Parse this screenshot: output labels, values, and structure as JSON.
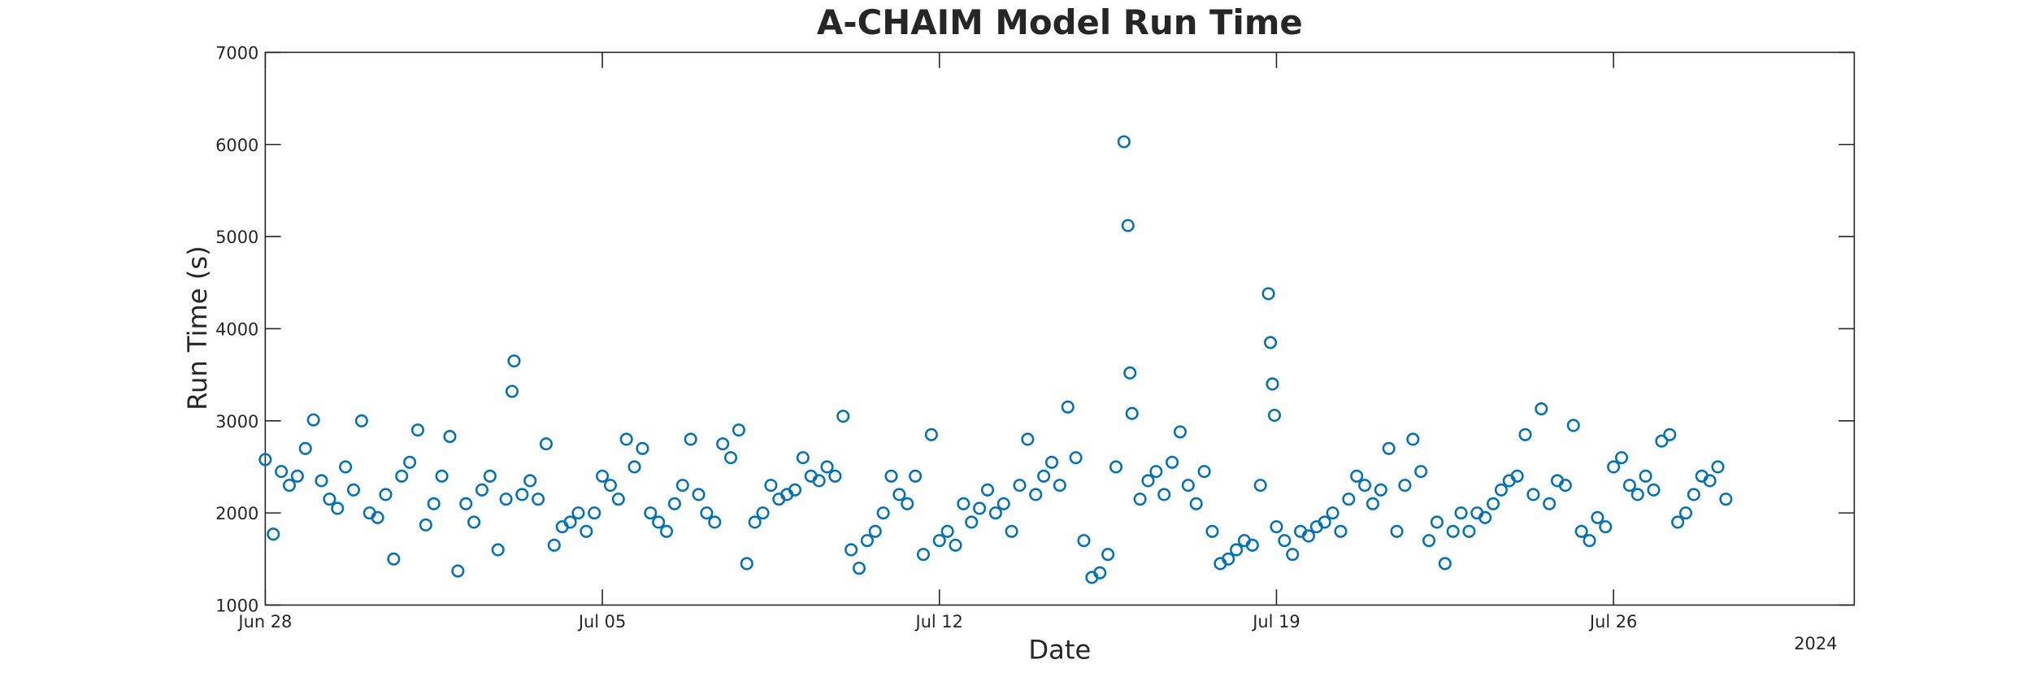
{
  "chart_data": {
    "type": "scatter",
    "title": "A-CHAIM Model Run Time",
    "xlabel": "Date",
    "ylabel": "Run Time (s)",
    "x_secondary_label": "2024",
    "color": "#0072bd",
    "xlim": [
      "2024-06-28T00:00",
      "2024-07-31T00:00"
    ],
    "xticks": [
      {
        "value": "2024-06-28T00:00",
        "label": "Jun 28"
      },
      {
        "value": "2024-07-05T00:00",
        "label": "Jul 05"
      },
      {
        "value": "2024-07-12T00:00",
        "label": "Jul 12"
      },
      {
        "value": "2024-07-19T00:00",
        "label": "Jul 19"
      },
      {
        "value": "2024-07-26T00:00",
        "label": "Jul 26"
      }
    ],
    "ylim": [
      1000,
      7000
    ],
    "yticks": [
      1000,
      2000,
      3000,
      4000,
      5000,
      6000,
      7000
    ],
    "x": [
      "2024-06-28T00:00",
      "2024-06-28T04:00",
      "2024-06-28T08:00",
      "2024-06-28T12:00",
      "2024-06-28T16:00",
      "2024-06-28T20:00",
      "2024-06-29T00:00",
      "2024-06-29T04:00",
      "2024-06-29T08:00",
      "2024-06-29T12:00",
      "2024-06-29T16:00",
      "2024-06-29T20:00",
      "2024-06-30T00:00",
      "2024-06-30T04:00",
      "2024-06-30T08:00",
      "2024-06-30T12:00",
      "2024-06-30T16:00",
      "2024-06-30T20:00",
      "2024-07-01T00:00",
      "2024-07-01T04:00",
      "2024-07-01T08:00",
      "2024-07-01T12:00",
      "2024-07-01T16:00",
      "2024-07-01T20:00",
      "2024-07-02T00:00",
      "2024-07-02T04:00",
      "2024-07-02T08:00",
      "2024-07-02T12:00",
      "2024-07-02T16:00",
      "2024-07-02T20:00",
      "2024-07-03T00:00",
      "2024-07-03T03:00",
      "2024-07-03T04:00",
      "2024-07-03T08:00",
      "2024-07-03T12:00",
      "2024-07-03T16:00",
      "2024-07-03T20:00",
      "2024-07-04T00:00",
      "2024-07-04T04:00",
      "2024-07-04T08:00",
      "2024-07-04T12:00",
      "2024-07-04T16:00",
      "2024-07-04T20:00",
      "2024-07-05T00:00",
      "2024-07-05T04:00",
      "2024-07-05T08:00",
      "2024-07-05T12:00",
      "2024-07-05T16:00",
      "2024-07-05T20:00",
      "2024-07-06T00:00",
      "2024-07-06T04:00",
      "2024-07-06T08:00",
      "2024-07-06T12:00",
      "2024-07-06T16:00",
      "2024-07-06T20:00",
      "2024-07-07T00:00",
      "2024-07-07T04:00",
      "2024-07-07T08:00",
      "2024-07-07T12:00",
      "2024-07-07T16:00",
      "2024-07-07T20:00",
      "2024-07-08T00:00",
      "2024-07-08T04:00",
      "2024-07-08T08:00",
      "2024-07-08T12:00",
      "2024-07-08T16:00",
      "2024-07-08T20:00",
      "2024-07-09T00:00",
      "2024-07-09T04:00",
      "2024-07-09T08:00",
      "2024-07-09T12:00",
      "2024-07-09T16:00",
      "2024-07-09T20:00",
      "2024-07-10T00:00",
      "2024-07-10T04:00",
      "2024-07-10T08:00",
      "2024-07-10T12:00",
      "2024-07-10T16:00",
      "2024-07-10T20:00",
      "2024-07-11T00:00",
      "2024-07-11T04:00",
      "2024-07-11T08:00",
      "2024-07-11T12:00",
      "2024-07-11T16:00",
      "2024-07-11T20:00",
      "2024-07-12T00:00",
      "2024-07-12T04:00",
      "2024-07-12T08:00",
      "2024-07-12T12:00",
      "2024-07-12T16:00",
      "2024-07-12T20:00",
      "2024-07-13T00:00",
      "2024-07-13T04:00",
      "2024-07-13T08:00",
      "2024-07-13T12:00",
      "2024-07-13T16:00",
      "2024-07-13T20:00",
      "2024-07-14T00:00",
      "2024-07-14T04:00",
      "2024-07-14T08:00",
      "2024-07-14T12:00",
      "2024-07-14T16:00",
      "2024-07-14T20:00",
      "2024-07-15T00:00",
      "2024-07-15T04:00",
      "2024-07-15T08:00",
      "2024-07-15T12:00",
      "2024-07-15T16:00",
      "2024-07-15T20:00",
      "2024-07-15T22:00",
      "2024-07-15T23:00",
      "2024-07-16T00:00",
      "2024-07-16T04:00",
      "2024-07-16T08:00",
      "2024-07-16T12:00",
      "2024-07-16T16:00",
      "2024-07-16T20:00",
      "2024-07-17T00:00",
      "2024-07-17T04:00",
      "2024-07-17T08:00",
      "2024-07-17T12:00",
      "2024-07-17T16:00",
      "2024-07-17T20:00",
      "2024-07-18T00:00",
      "2024-07-18T04:00",
      "2024-07-18T08:00",
      "2024-07-18T12:00",
      "2024-07-18T16:00",
      "2024-07-18T20:00",
      "2024-07-18T21:00",
      "2024-07-18T22:00",
      "2024-07-18T23:00",
      "2024-07-19T00:00",
      "2024-07-19T04:00",
      "2024-07-19T08:00",
      "2024-07-19T12:00",
      "2024-07-19T16:00",
      "2024-07-19T20:00",
      "2024-07-20T00:00",
      "2024-07-20T04:00",
      "2024-07-20T08:00",
      "2024-07-20T12:00",
      "2024-07-20T16:00",
      "2024-07-20T20:00",
      "2024-07-21T00:00",
      "2024-07-21T04:00",
      "2024-07-21T08:00",
      "2024-07-21T12:00",
      "2024-07-21T16:00",
      "2024-07-21T20:00",
      "2024-07-22T00:00",
      "2024-07-22T04:00",
      "2024-07-22T08:00",
      "2024-07-22T12:00",
      "2024-07-22T16:00",
      "2024-07-22T20:00",
      "2024-07-23T00:00",
      "2024-07-23T04:00",
      "2024-07-23T08:00",
      "2024-07-23T12:00",
      "2024-07-23T16:00",
      "2024-07-23T20:00",
      "2024-07-24T00:00",
      "2024-07-24T04:00",
      "2024-07-24T08:00",
      "2024-07-24T12:00",
      "2024-07-24T16:00",
      "2024-07-24T20:00",
      "2024-07-25T00:00",
      "2024-07-25T04:00",
      "2024-07-25T08:00",
      "2024-07-25T12:00",
      "2024-07-25T16:00",
      "2024-07-25T20:00",
      "2024-07-26T00:00",
      "2024-07-26T04:00",
      "2024-07-26T08:00",
      "2024-07-26T12:00",
      "2024-07-26T16:00",
      "2024-07-26T20:00",
      "2024-07-27T00:00",
      "2024-07-27T04:00",
      "2024-07-27T08:00",
      "2024-07-27T12:00",
      "2024-07-27T16:00",
      "2024-07-27T20:00",
      "2024-07-28T00:00",
      "2024-07-28T04:00",
      "2024-07-28T08:00"
    ],
    "values": [
      2580,
      1770,
      2450,
      2300,
      2400,
      2700,
      3010,
      2350,
      2150,
      2050,
      2500,
      2250,
      3000,
      2000,
      1950,
      2200,
      1500,
      2400,
      2550,
      2900,
      1870,
      2100,
      2400,
      2830,
      1370,
      2100,
      1900,
      2250,
      2400,
      1600,
      2150,
      3320,
      3650,
      2200,
      2350,
      2150,
      2750,
      1650,
      1850,
      1900,
      2000,
      1800,
      2000,
      2400,
      2300,
      2150,
      2800,
      2500,
      2700,
      2000,
      1900,
      1800,
      2100,
      2300,
      2800,
      2200,
      2000,
      1900,
      2750,
      2600,
      2900,
      1450,
      1900,
      2000,
      2300,
      2150,
      2200,
      2250,
      2600,
      2400,
      2350,
      2500,
      2400,
      3050,
      1600,
      1400,
      1700,
      1800,
      2000,
      2400,
      2200,
      2100,
      2400,
      1550,
      2850,
      1700,
      1800,
      1650,
      2100,
      1900,
      2050,
      2250,
      2000,
      2100,
      1800,
      2300,
      2800,
      2200,
      2400,
      2550,
      2300,
      3150,
      2600,
      1700,
      1300,
      1350,
      1550,
      2500,
      6030,
      5120,
      3520,
      3080,
      2150,
      2350,
      2450,
      2200,
      2550,
      2880,
      2300,
      2100,
      2450,
      1800,
      1450,
      1500,
      1600,
      1700,
      1650,
      2300,
      4380,
      3850,
      3400,
      3060,
      1850,
      1700,
      1550,
      1800,
      1750,
      1850,
      1900,
      2000,
      1800,
      2150,
      2400,
      2300,
      2100,
      2250,
      2700,
      1800,
      2300,
      2800,
      2450,
      1700,
      1900,
      1450,
      1800,
      2000,
      1800,
      2000,
      1950,
      2100,
      2250,
      2350,
      2400,
      2850,
      2200,
      3130,
      2100,
      2350,
      2300,
      2950,
      1800,
      1700,
      1950,
      1850,
      2500,
      2600,
      2300,
      2200,
      2400,
      2250,
      2780,
      2850,
      1900,
      2000,
      2200,
      2400,
      2350,
      2500,
      2150
    ]
  }
}
